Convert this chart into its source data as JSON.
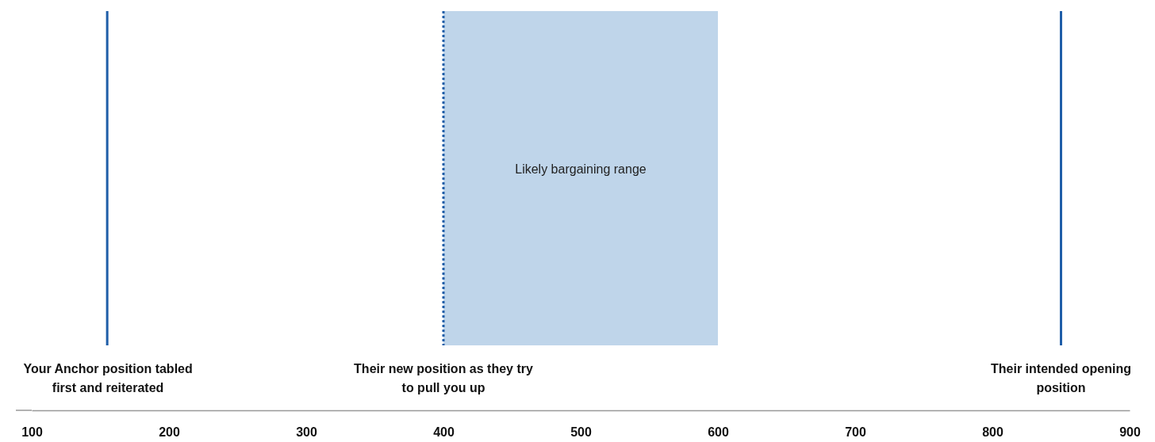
{
  "chart_data": {
    "type": "bar",
    "orientation": "horizontal",
    "categories": [
      null
    ],
    "base": [
      400
    ],
    "values": [
      200
    ],
    "color": "#bfd5ea",
    "xlim": [
      100,
      900
    ],
    "xticks": [
      100,
      200,
      300,
      400,
      500,
      600,
      700,
      800,
      900
    ],
    "annotations": [
      "Likely bargaining range"
    ],
    "ref_lines": [
      {
        "axis": "x",
        "value": 155,
        "label": "Your Anchor position tabled first and reiterated",
        "color": "#1f5ea8",
        "line_style": "solid"
      },
      {
        "axis": "x",
        "value": 400,
        "label": "Their new position as they try to pull you up",
        "color": "#1f5ea8",
        "line_style": "dotted"
      },
      {
        "axis": "x",
        "value": 850,
        "label": "Their intended opening position",
        "color": "#1f5ea8",
        "line_style": "solid"
      }
    ]
  }
}
